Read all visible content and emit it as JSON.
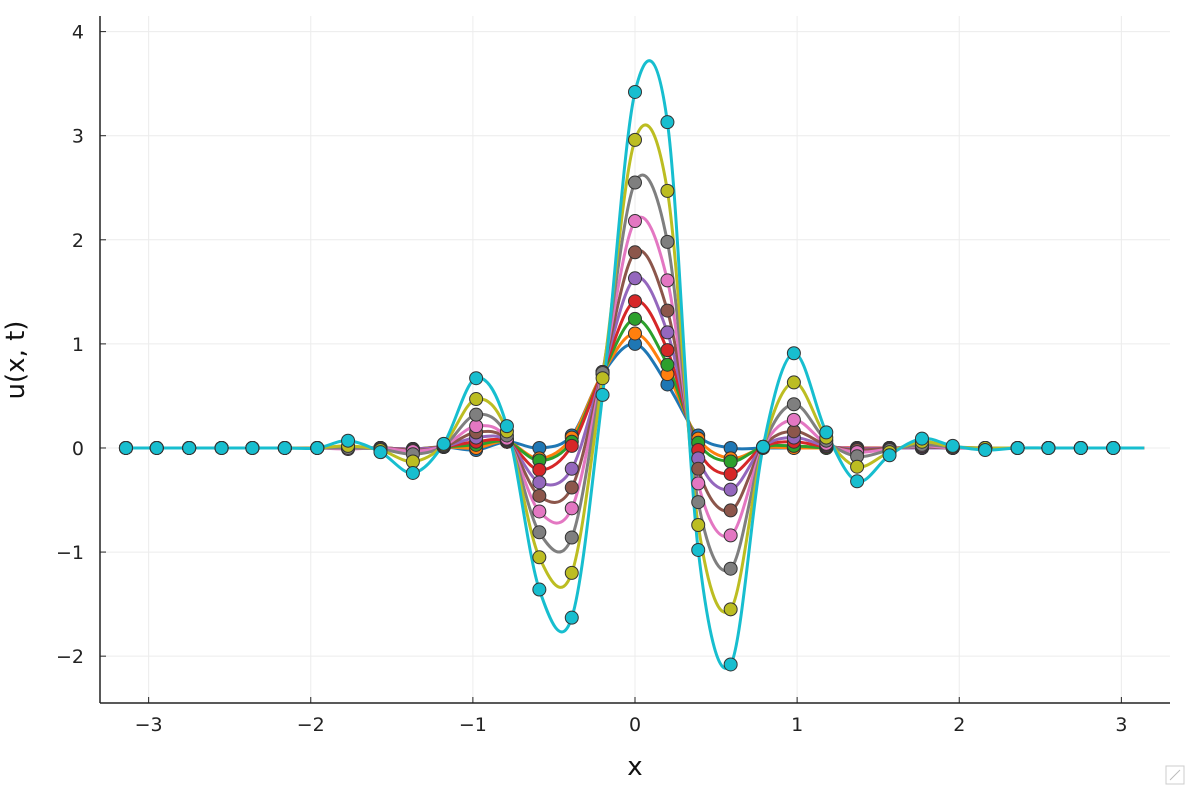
{
  "chart_data": {
    "type": "line",
    "title": "",
    "xlabel": "x",
    "ylabel": "u(x, t)",
    "xlim": [
      -3.3,
      3.3
    ],
    "ylim": [
      -2.45,
      4.15
    ],
    "xticks": [
      -3,
      -2,
      -1,
      0,
      1,
      2,
      3
    ],
    "xtick_labels": [
      "−3",
      "−2",
      "−1",
      "0",
      "1",
      "2",
      "3"
    ],
    "yticks": [
      -2,
      -1,
      0,
      1,
      2,
      3,
      4
    ],
    "ytick_labels": [
      "−2",
      "−1",
      "0",
      "1",
      "2",
      "3",
      "4"
    ],
    "grid": true,
    "legend": "none",
    "markers": "circles at sample points",
    "sample_x": [
      -3.14,
      -2.95,
      -2.75,
      -2.55,
      -2.36,
      -2.16,
      -1.96,
      -1.77,
      -1.57,
      -1.37,
      -1.18,
      -0.98,
      -0.79,
      -0.59,
      -0.39,
      -0.2,
      0.0,
      0.2,
      0.39,
      0.59,
      0.79,
      0.98,
      1.18,
      1.37,
      1.57,
      1.77,
      1.96,
      2.16,
      2.36,
      2.55,
      2.75,
      2.95
    ],
    "series": [
      {
        "color": "#1f77b4",
        "values": [
          0,
          0,
          0,
          0,
          0,
          0,
          0,
          0,
          0,
          -0.01,
          0.01,
          -0.02,
          0.06,
          0.0,
          0.12,
          0.71,
          1.0,
          0.61,
          0.12,
          0.0,
          0.0,
          0.0,
          0.0,
          0.0,
          0.0,
          0.0,
          0.0,
          0,
          0,
          0,
          0,
          0
        ]
      },
      {
        "color": "#ff7f0e",
        "values": [
          0,
          0,
          0,
          0,
          0,
          0,
          0,
          0,
          0,
          -0.01,
          0.01,
          0.0,
          0.06,
          -0.1,
          0.1,
          0.72,
          1.1,
          0.71,
          0.09,
          -0.1,
          0.0,
          0.0,
          0.0,
          0.0,
          0.0,
          0.0,
          0.0,
          0,
          0,
          0,
          0,
          0
        ]
      },
      {
        "color": "#2ca02c",
        "values": [
          0,
          0,
          0,
          0,
          0,
          0,
          0,
          0,
          0,
          -0.01,
          0.01,
          0.03,
          0.06,
          -0.12,
          0.06,
          0.72,
          1.24,
          0.8,
          0.05,
          -0.13,
          0.01,
          0.02,
          0.0,
          0.0,
          0.0,
          0.0,
          0.0,
          0,
          0,
          0,
          0,
          0
        ]
      },
      {
        "color": "#d62728",
        "values": [
          0,
          0,
          0,
          0,
          0,
          0,
          0,
          0,
          0,
          -0.01,
          0.01,
          0.06,
          0.06,
          -0.21,
          0.02,
          0.73,
          1.41,
          0.94,
          -0.02,
          -0.25,
          0.01,
          0.06,
          0.01,
          0.0,
          0.0,
          0.0,
          0.0,
          0,
          0,
          0,
          0,
          0
        ]
      },
      {
        "color": "#9467bd",
        "values": [
          0,
          0,
          0,
          0,
          0,
          0,
          0,
          0,
          0,
          -0.01,
          0.01,
          0.1,
          0.07,
          -0.33,
          -0.2,
          0.73,
          1.63,
          1.11,
          -0.1,
          -0.4,
          0.01,
          0.1,
          0.02,
          -0.01,
          0.0,
          0.0,
          0.0,
          0,
          0,
          0,
          0,
          0
        ]
      },
      {
        "color": "#8c564b",
        "values": [
          0,
          0,
          0,
          0,
          0,
          0,
          0,
          0,
          0,
          -0.02,
          0.01,
          0.15,
          0.08,
          -0.46,
          -0.38,
          0.73,
          1.88,
          1.32,
          -0.2,
          -0.6,
          0.01,
          0.16,
          0.03,
          -0.02,
          0.0,
          0.01,
          0.0,
          0,
          0,
          0,
          0,
          0
        ]
      },
      {
        "color": "#e377c2",
        "values": [
          0,
          0,
          0,
          0,
          0,
          0,
          0,
          -0.01,
          0.0,
          -0.03,
          0.02,
          0.21,
          0.09,
          -0.61,
          -0.58,
          0.73,
          2.18,
          1.61,
          -0.34,
          -0.84,
          0.01,
          0.27,
          0.04,
          -0.04,
          -0.01,
          0.02,
          0.0,
          0,
          0,
          0,
          0,
          0
        ]
      },
      {
        "color": "#7f7f7f",
        "values": [
          0,
          0,
          0,
          0,
          0,
          0,
          0,
          0.0,
          -0.01,
          -0.06,
          0.02,
          0.32,
          0.12,
          -0.81,
          -0.86,
          0.72,
          2.55,
          1.98,
          -0.52,
          -1.16,
          0.01,
          0.42,
          0.07,
          -0.08,
          -0.02,
          0.03,
          0.01,
          0,
          0,
          0,
          0,
          0
        ]
      },
      {
        "color": "#bcbd22",
        "values": [
          0,
          0,
          0,
          0,
          0,
          0,
          0,
          0.02,
          -0.02,
          -0.13,
          0.03,
          0.47,
          0.16,
          -1.05,
          -1.2,
          0.67,
          2.96,
          2.47,
          -0.74,
          -1.55,
          0.01,
          0.63,
          0.1,
          -0.18,
          -0.04,
          0.06,
          0.01,
          0,
          0,
          0,
          0,
          0
        ]
      },
      {
        "color": "#17becf",
        "values": [
          0,
          0,
          0,
          0,
          0,
          0,
          0,
          0.07,
          -0.04,
          -0.24,
          0.04,
          0.67,
          0.21,
          -1.36,
          -1.63,
          0.51,
          3.42,
          3.13,
          -0.98,
          -2.08,
          0.01,
          0.91,
          0.15,
          -0.32,
          -0.07,
          0.09,
          0.02,
          -0.02,
          0,
          0,
          0,
          0
        ]
      }
    ]
  }
}
